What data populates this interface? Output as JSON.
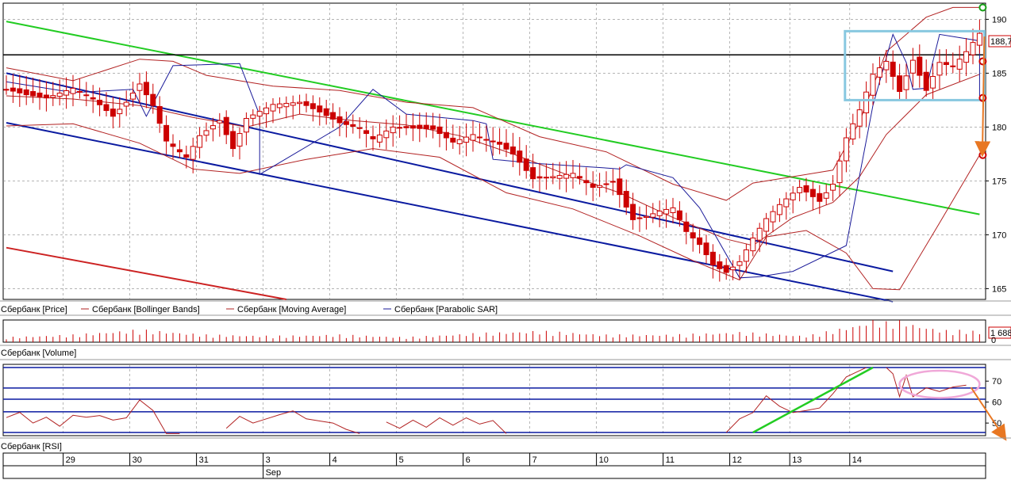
{
  "colors": {
    "up": "#ffffff",
    "down": "#cc0000",
    "candle_outline": "#cc0000",
    "bollinger": "#b22222",
    "moving_average": "#b22222",
    "sar": "#1a1a99",
    "channel": "#0a1aa0",
    "green_trend": "#22cc22",
    "red_trend": "#cc2222",
    "horizontal_level": "#000000",
    "annotation_arrow": "#e87722",
    "box": "#88c8e0",
    "ellipse": "#f0a8d8",
    "sar_marker_green": "#18a018",
    "sar_marker_red": "#cc0000",
    "grid": "#888888"
  },
  "chart_data": [
    {
      "type": "candlestick",
      "title": "",
      "y_ticks": [
        "190",
        "185",
        "180",
        "175",
        "170",
        "165"
      ],
      "ylim": [
        164,
        191.5
      ],
      "last_price_label": "188,7",
      "last_price": 188.7,
      "horizontal_level": 186.7,
      "legend": [
        "Сбербанк [Price]",
        "Сбербанк [Bollinger Bands]",
        "Сбербанк [Moving Average]",
        "Сбербанк [Parabolic SAR]"
      ],
      "close_points": [
        [
          0,
          183.5
        ],
        [
          3,
          183.0
        ],
        [
          6,
          182.7
        ],
        [
          10,
          183.6
        ],
        [
          13,
          182.6
        ],
        [
          16,
          181.0
        ],
        [
          18,
          182.3
        ],
        [
          20,
          184.0
        ],
        [
          22,
          182.0
        ],
        [
          24,
          178.7
        ],
        [
          27,
          177.2
        ],
        [
          29,
          179.2
        ],
        [
          32,
          180.6
        ],
        [
          34,
          178.0
        ],
        [
          36,
          180.8
        ],
        [
          40,
          182.1
        ],
        [
          44,
          182.3
        ],
        [
          47,
          181.4
        ],
        [
          50,
          180.4
        ],
        [
          53,
          179.9
        ],
        [
          55,
          178.9
        ],
        [
          58,
          180.0
        ],
        [
          61,
          179.9
        ],
        [
          64,
          179.8
        ],
        [
          67,
          178.6
        ],
        [
          70,
          179.3
        ],
        [
          74,
          178.4
        ],
        [
          76,
          177.5
        ],
        [
          79,
          175.2
        ],
        [
          82,
          175.4
        ],
        [
          85,
          175.7
        ],
        [
          88,
          174.4
        ],
        [
          91,
          174.9
        ],
        [
          94,
          171.4
        ],
        [
          96,
          171.7
        ],
        [
          98,
          172.2
        ],
        [
          100,
          172.5
        ],
        [
          102,
          170.3
        ],
        [
          104,
          169.1
        ],
        [
          106,
          167.2
        ],
        [
          108,
          166.5
        ],
        [
          110,
          167.5
        ],
        [
          112,
          169.7
        ],
        [
          114,
          171.5
        ],
        [
          116,
          172.8
        ],
        [
          119,
          174.4
        ],
        [
          122,
          173.1
        ],
        [
          124,
          174.7
        ],
        [
          126,
          179.0
        ],
        [
          128,
          181.6
        ],
        [
          130,
          184.9
        ],
        [
          132,
          186.1
        ],
        [
          134,
          183.3
        ],
        [
          136,
          186.2
        ],
        [
          138,
          183.4
        ],
        [
          140,
          186.0
        ],
        [
          142,
          185.6
        ],
        [
          144,
          187.0
        ],
        [
          146,
          188.7
        ]
      ],
      "bollinger_upper": [
        [
          0,
          185.5
        ],
        [
          10,
          184.3
        ],
        [
          20,
          186.3
        ],
        [
          25,
          186.1
        ],
        [
          30,
          184.8
        ],
        [
          40,
          183.8
        ],
        [
          50,
          183.4
        ],
        [
          60,
          182.3
        ],
        [
          70,
          181.8
        ],
        [
          80,
          179.1
        ],
        [
          90,
          177.7
        ],
        [
          100,
          174.7
        ],
        [
          108,
          173.2
        ],
        [
          112,
          174.8
        ],
        [
          118,
          175.4
        ],
        [
          124,
          176.0
        ],
        [
          128,
          180.5
        ],
        [
          132,
          187.0
        ],
        [
          138,
          190.2
        ],
        [
          142,
          191.1
        ],
        [
          146,
          191.1
        ]
      ],
      "bollinger_lower": [
        [
          0,
          180.1
        ],
        [
          10,
          180.3
        ],
        [
          20,
          178.5
        ],
        [
          28,
          176.1
        ],
        [
          35,
          175.7
        ],
        [
          45,
          177.0
        ],
        [
          55,
          178.0
        ],
        [
          65,
          177.2
        ],
        [
          75,
          173.9
        ],
        [
          85,
          172.4
        ],
        [
          95,
          169.9
        ],
        [
          103,
          167.6
        ],
        [
          110,
          165.8
        ],
        [
          114,
          169.8
        ],
        [
          120,
          170.4
        ],
        [
          126,
          168.3
        ],
        [
          130,
          165.0
        ],
        [
          134,
          164.9
        ],
        [
          140,
          171.1
        ],
        [
          146,
          177.4
        ]
      ],
      "moving_average": [
        [
          0,
          182.9
        ],
        [
          10,
          182.6
        ],
        [
          20,
          182.0
        ],
        [
          28,
          180.9
        ],
        [
          36,
          180.0
        ],
        [
          44,
          181.2
        ],
        [
          52,
          180.6
        ],
        [
          60,
          180.2
        ],
        [
          68,
          179.2
        ],
        [
          76,
          177.5
        ],
        [
          84,
          175.6
        ],
        [
          92,
          173.9
        ],
        [
          100,
          171.6
        ],
        [
          108,
          169.6
        ],
        [
          112,
          169.0
        ],
        [
          118,
          171.6
        ],
        [
          124,
          173.0
        ],
        [
          128,
          175.4
        ],
        [
          132,
          179.3
        ],
        [
          138,
          183.0
        ],
        [
          146,
          184.9
        ]
      ],
      "parabolic_sar": [
        [
          0,
          184.2
        ],
        [
          10,
          183.2
        ],
        [
          19,
          183.5
        ],
        [
          21,
          181.0
        ],
        [
          25,
          185.7
        ],
        [
          35,
          185.9
        ],
        [
          38,
          181.1
        ],
        [
          38,
          175.6
        ],
        [
          50,
          180.0
        ],
        [
          55,
          183.5
        ],
        [
          60,
          181.2
        ],
        [
          70,
          180.6
        ],
        [
          72,
          180.3
        ],
        [
          73,
          177.0
        ],
        [
          80,
          176.6
        ],
        [
          90,
          176.2
        ],
        [
          92,
          176.1
        ],
        [
          93,
          176.5
        ],
        [
          100,
          175.3
        ],
        [
          104,
          172.5
        ],
        [
          110,
          166.0
        ],
        [
          113,
          166.1
        ],
        [
          118,
          166.6
        ],
        [
          126,
          169.0
        ],
        [
          130,
          182.0
        ],
        [
          133,
          188.6
        ],
        [
          135,
          186.0
        ],
        [
          136,
          183.5
        ],
        [
          138,
          183.6
        ],
        [
          140,
          188.6
        ],
        [
          146,
          188.0
        ],
        [
          146,
          182.9
        ]
      ],
      "sar_markers": [
        {
          "x": 146,
          "y": 191.1,
          "color": "green"
        },
        {
          "x": 146,
          "y": 186.1,
          "color": "red"
        },
        {
          "x": 146,
          "y": 182.7,
          "color": "red"
        },
        {
          "x": 146,
          "y": 177.4,
          "color": "red"
        }
      ],
      "channel_upper": [
        [
          0,
          185.0
        ],
        [
          133,
          166.6
        ]
      ],
      "channel_lower": [
        [
          0,
          180.4
        ],
        [
          133,
          163.8
        ]
      ],
      "green_trendline": [
        [
          0,
          189.8
        ],
        [
          146,
          171.9
        ]
      ],
      "red_trendline": [
        [
          0,
          168.8
        ],
        [
          42,
          164.0
        ]
      ],
      "annotation_box": {
        "x": [
          127,
          146
        ],
        "y": [
          182.5,
          188.9
        ]
      },
      "annotation_arrow": {
        "from": [
          146,
          188.4
        ],
        "to": [
          150,
          177.8
        ]
      }
    },
    {
      "type": "bar",
      "title": "",
      "legend": [
        "Сбербанк [Volume]"
      ],
      "last_value_label": "1 688",
      "y_ticks": [
        "0"
      ],
      "volume_points": [
        [
          0,
          0.2
        ],
        [
          10,
          0.3
        ],
        [
          20,
          0.5
        ],
        [
          30,
          0.3
        ],
        [
          40,
          0.25
        ],
        [
          50,
          0.3
        ],
        [
          60,
          0.2
        ],
        [
          70,
          0.35
        ],
        [
          80,
          0.45
        ],
        [
          90,
          0.3
        ],
        [
          100,
          0.3
        ],
        [
          110,
          0.4
        ],
        [
          120,
          0.25
        ],
        [
          128,
          0.7
        ],
        [
          130,
          0.9
        ],
        [
          132,
          0.8
        ],
        [
          134,
          1.0
        ],
        [
          136,
          0.7
        ],
        [
          138,
          0.6
        ],
        [
          140,
          0.5
        ],
        [
          142,
          0.45
        ],
        [
          144,
          0.5
        ],
        [
          146,
          0.4
        ]
      ],
      "ylim": [
        0,
        1.1
      ]
    },
    {
      "type": "line",
      "title": "",
      "legend": [
        "Сбербанк [RSI]"
      ],
      "y_ticks": [
        "70",
        "60",
        "50"
      ],
      "ylim": [
        44,
        78
      ],
      "levels": [
        76.5,
        66.7,
        61.4,
        55.4,
        45.5
      ],
      "rsi_points": [
        [
          0,
          52.6
        ],
        [
          2,
          55.1
        ],
        [
          4,
          50.0
        ],
        [
          6,
          52.8
        ],
        [
          8,
          48.5
        ],
        [
          10,
          53.7
        ],
        [
          12,
          52.8
        ],
        [
          14,
          53.6
        ],
        [
          16,
          51.4
        ],
        [
          18,
          52.5
        ],
        [
          20,
          61.0
        ],
        [
          22,
          56.0
        ],
        [
          24,
          45.0
        ],
        [
          26,
          45.0
        ]
      ],
      "rsi_points_2": [
        [
          33,
          47.5
        ],
        [
          35,
          53.2
        ],
        [
          37,
          50.0
        ],
        [
          39,
          52.0
        ],
        [
          41,
          54.0
        ],
        [
          43,
          55.8
        ],
        [
          45,
          52.0
        ],
        [
          47,
          51.0
        ],
        [
          49,
          50.0
        ],
        [
          51,
          47.0
        ],
        [
          53,
          45.0
        ]
      ],
      "rsi_points_3": [
        [
          57,
          50.5
        ],
        [
          59,
          47.5
        ],
        [
          61,
          51.4
        ],
        [
          63,
          48.0
        ],
        [
          65,
          52.5
        ],
        [
          67,
          49.0
        ],
        [
          69,
          52.5
        ],
        [
          71,
          49.5
        ],
        [
          73,
          51.2
        ],
        [
          75,
          45.0
        ]
      ],
      "rsi_points_4": [
        [
          108,
          45.5
        ],
        [
          110,
          52.0
        ],
        [
          112,
          55.0
        ],
        [
          114,
          63.0
        ],
        [
          116,
          58.0
        ],
        [
          118,
          55.0
        ],
        [
          120,
          56.0
        ],
        [
          122,
          57.2
        ],
        [
          124,
          64.0
        ],
        [
          126,
          72.0
        ],
        [
          128,
          75.0
        ],
        [
          129,
          76.5
        ]
      ],
      "rsi_points_5": [
        [
          132,
          76.5
        ],
        [
          133,
          73.5
        ],
        [
          134,
          62.6
        ],
        [
          135,
          72.8
        ],
        [
          136,
          62.5
        ],
        [
          138,
          66.8
        ],
        [
          140,
          65.0
        ],
        [
          142,
          67.2
        ],
        [
          144,
          68.1
        ]
      ],
      "green_line": [
        [
          112,
          45.5
        ],
        [
          130,
          76.5
        ]
      ],
      "ellipse": {
        "cx": 140,
        "cy": 68.5,
        "rx": 6.0,
        "ry": 6.5
      },
      "annotation_arrow": {
        "from": [
          144,
          67.0
        ],
        "to": [
          150,
          44.0
        ]
      }
    }
  ],
  "time_axis": {
    "day_labels": [
      "29",
      "30",
      "31",
      "3",
      "4",
      "5",
      "6",
      "7",
      "10",
      "11",
      "12",
      "13",
      "14"
    ],
    "day_starts": [
      9,
      19,
      29,
      39,
      49,
      59,
      69,
      79,
      89,
      99,
      109,
      118,
      127
    ],
    "month_label": "Sep",
    "month_start": 39
  }
}
